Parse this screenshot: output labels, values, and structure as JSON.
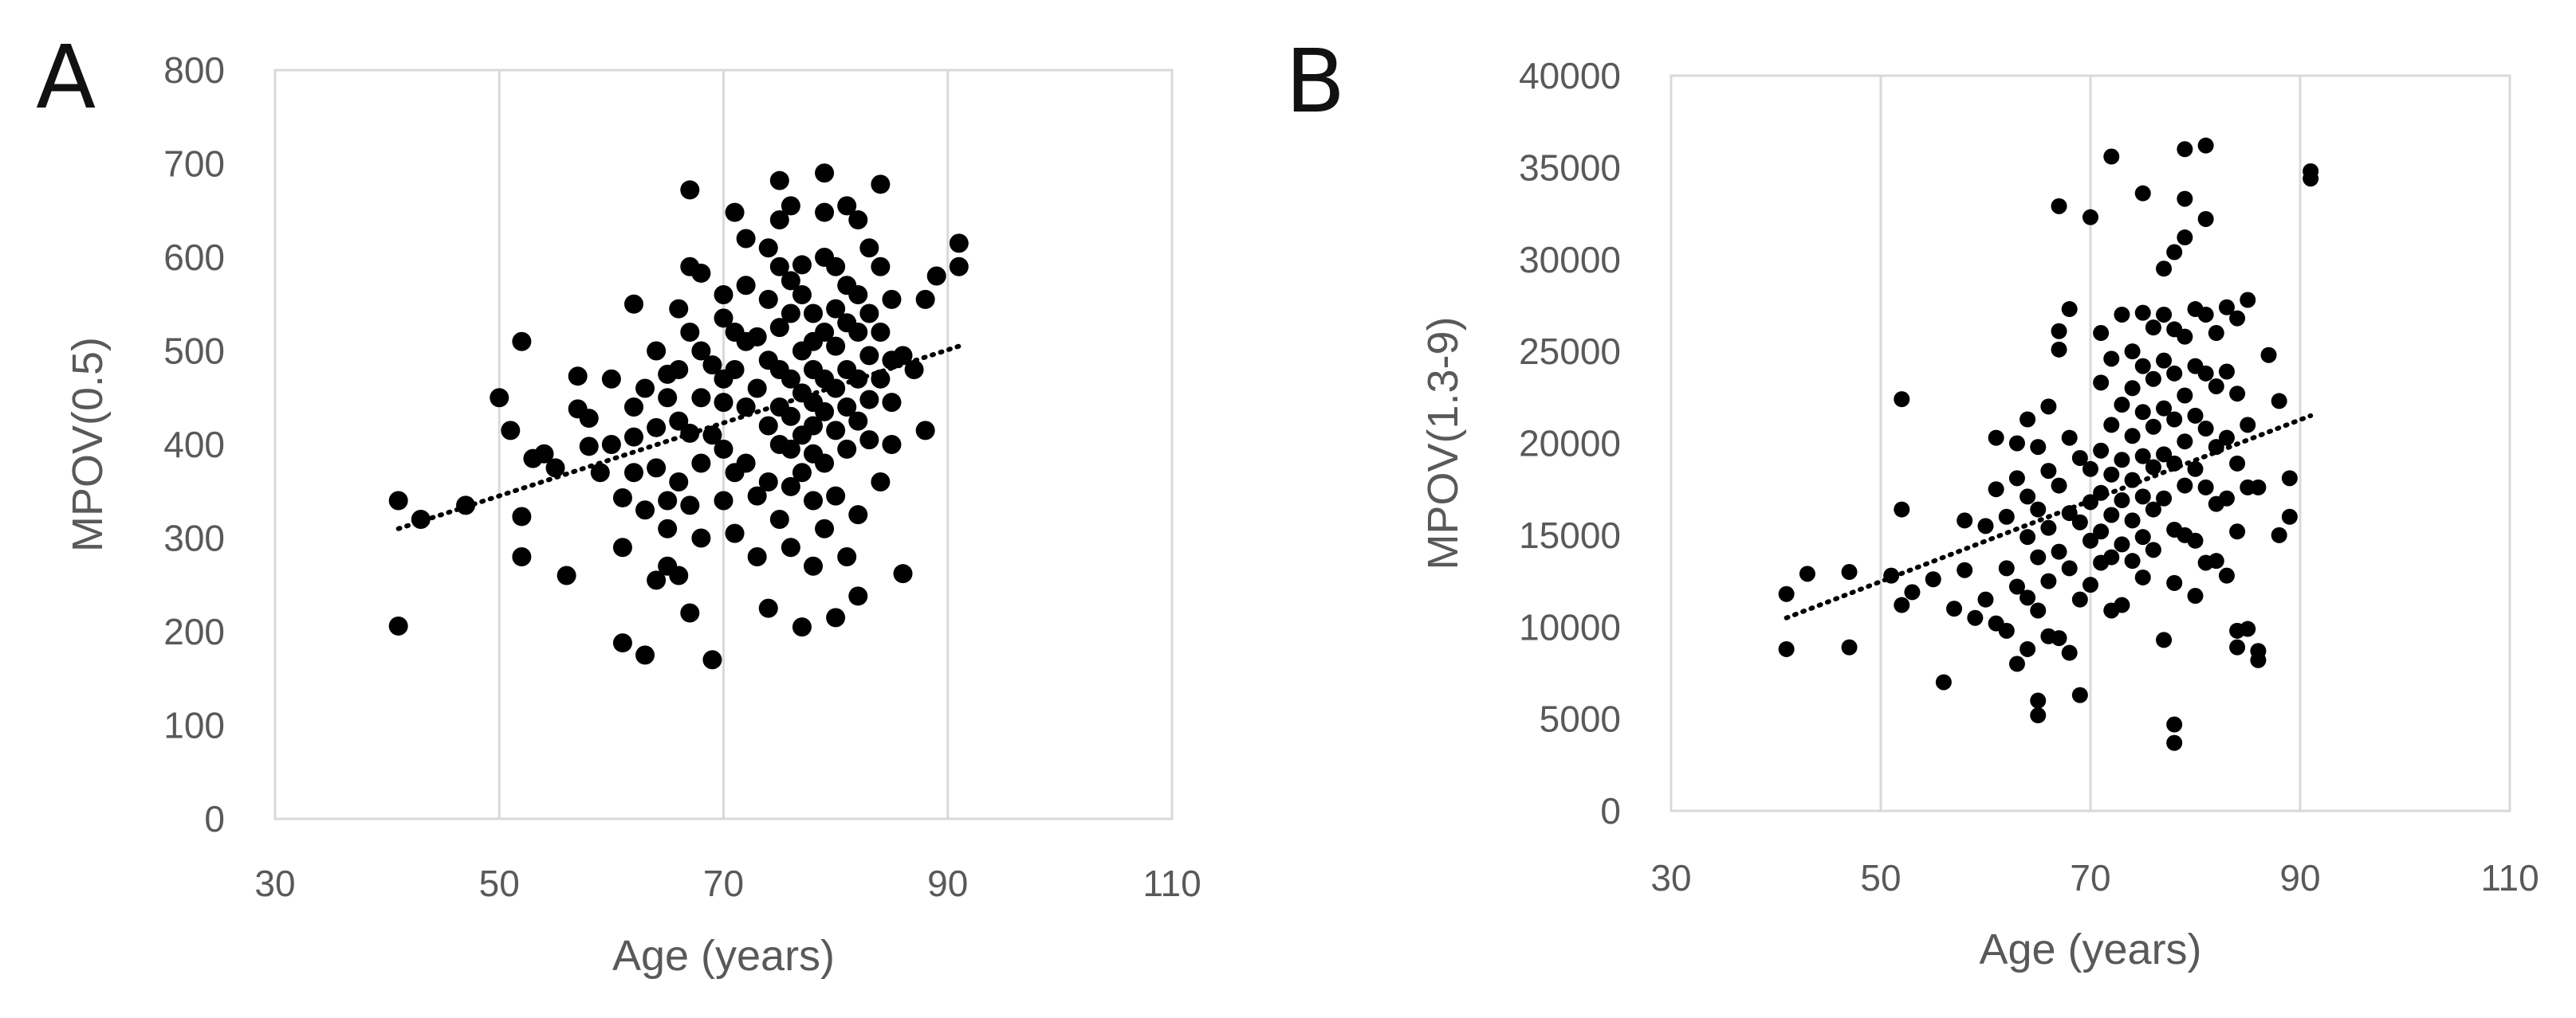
{
  "chart_data": [
    {
      "panel": "A",
      "type": "scatter",
      "xlabel": "Age (years)",
      "ylabel": "MPOV(0.5)",
      "xlim": [
        30,
        110
      ],
      "ylim": [
        0,
        800
      ],
      "xticks": [
        30,
        50,
        70,
        90,
        110
      ],
      "yticks": [
        0,
        100,
        200,
        300,
        400,
        500,
        600,
        700,
        800
      ],
      "grid": "vertical",
      "trendline": {
        "style": "dotted linear",
        "x": [
          41,
          91
        ],
        "y": [
          310,
          505
        ]
      },
      "marker_color": "#000000",
      "points": [
        [
          41,
          340
        ],
        [
          41,
          206
        ],
        [
          43,
          320
        ],
        [
          47,
          335
        ],
        [
          50,
          450
        ],
        [
          51,
          415
        ],
        [
          52,
          510
        ],
        [
          52,
          323
        ],
        [
          52,
          280
        ],
        [
          53,
          385
        ],
        [
          54,
          390
        ],
        [
          55,
          375
        ],
        [
          56,
          260
        ],
        [
          57,
          438
        ],
        [
          57,
          473
        ],
        [
          58,
          428
        ],
        [
          58,
          398
        ],
        [
          59,
          370
        ],
        [
          60,
          470
        ],
        [
          60,
          400
        ],
        [
          61,
          343
        ],
        [
          61,
          290
        ],
        [
          61,
          188
        ],
        [
          62,
          550
        ],
        [
          62,
          440
        ],
        [
          62,
          408
        ],
        [
          62,
          370
        ],
        [
          63,
          330
        ],
        [
          63,
          460
        ],
        [
          63,
          175
        ],
        [
          64,
          500
        ],
        [
          64,
          375
        ],
        [
          64,
          418
        ],
        [
          64,
          255
        ],
        [
          65,
          475
        ],
        [
          65,
          340
        ],
        [
          65,
          310
        ],
        [
          65,
          450
        ],
        [
          65,
          270
        ],
        [
          66,
          545
        ],
        [
          66,
          480
        ],
        [
          66,
          360
        ],
        [
          66,
          425
        ],
        [
          66,
          260
        ],
        [
          67,
          672
        ],
        [
          67,
          590
        ],
        [
          67,
          520
        ],
        [
          67,
          412
        ],
        [
          67,
          335
        ],
        [
          67,
          220
        ],
        [
          68,
          583
        ],
        [
          68,
          500
        ],
        [
          68,
          450
        ],
        [
          68,
          380
        ],
        [
          68,
          300
        ],
        [
          69,
          170
        ],
        [
          69,
          485
        ],
        [
          69,
          410
        ],
        [
          70,
          560
        ],
        [
          70,
          535
        ],
        [
          70,
          470
        ],
        [
          70,
          445
        ],
        [
          70,
          395
        ],
        [
          70,
          340
        ],
        [
          71,
          648
        ],
        [
          71,
          520
        ],
        [
          71,
          480
        ],
        [
          71,
          370
        ],
        [
          71,
          305
        ],
        [
          72,
          620
        ],
        [
          72,
          570
        ],
        [
          72,
          510
        ],
        [
          72,
          440
        ],
        [
          72,
          380
        ],
        [
          73,
          515
        ],
        [
          73,
          460
        ],
        [
          73,
          280
        ],
        [
          73,
          345
        ],
        [
          74,
          610
        ],
        [
          74,
          555
        ],
        [
          74,
          490
        ],
        [
          74,
          420
        ],
        [
          74,
          360
        ],
        [
          74,
          225
        ],
        [
          75,
          682
        ],
        [
          75,
          640
        ],
        [
          75,
          590
        ],
        [
          75,
          525
        ],
        [
          75,
          480
        ],
        [
          75,
          440
        ],
        [
          75,
          400
        ],
        [
          75,
          320
        ],
        [
          76,
          655
        ],
        [
          76,
          575
        ],
        [
          76,
          540
        ],
        [
          76,
          470
        ],
        [
          76,
          430
        ],
        [
          76,
          395
        ],
        [
          76,
          355
        ],
        [
          76,
          290
        ],
        [
          77,
          592
        ],
        [
          77,
          560
        ],
        [
          77,
          500
        ],
        [
          77,
          455
        ],
        [
          77,
          410
        ],
        [
          77,
          370
        ],
        [
          77,
          205
        ],
        [
          78,
          540
        ],
        [
          78,
          510
        ],
        [
          78,
          480
        ],
        [
          78,
          445
        ],
        [
          78,
          420
        ],
        [
          78,
          390
        ],
        [
          78,
          340
        ],
        [
          78,
          270
        ],
        [
          79,
          690
        ],
        [
          79,
          648
        ],
        [
          79,
          600
        ],
        [
          79,
          520
        ],
        [
          79,
          470
        ],
        [
          79,
          435
        ],
        [
          79,
          380
        ],
        [
          79,
          310
        ],
        [
          80,
          590
        ],
        [
          80,
          545
        ],
        [
          80,
          505
        ],
        [
          80,
          460
        ],
        [
          80,
          415
        ],
        [
          80,
          345
        ],
        [
          80,
          215
        ],
        [
          81,
          655
        ],
        [
          81,
          570
        ],
        [
          81,
          530
        ],
        [
          81,
          480
        ],
        [
          81,
          440
        ],
        [
          81,
          395
        ],
        [
          81,
          280
        ],
        [
          82,
          640
        ],
        [
          82,
          560
        ],
        [
          82,
          520
        ],
        [
          82,
          470
        ],
        [
          82,
          425
        ],
        [
          82,
          325
        ],
        [
          82,
          238
        ],
        [
          83,
          610
        ],
        [
          83,
          540
        ],
        [
          83,
          495
        ],
        [
          83,
          448
        ],
        [
          83,
          405
        ],
        [
          84,
          678
        ],
        [
          84,
          590
        ],
        [
          84,
          520
        ],
        [
          84,
          470
        ],
        [
          84,
          360
        ],
        [
          85,
          555
        ],
        [
          85,
          490
        ],
        [
          85,
          445
        ],
        [
          85,
          400
        ],
        [
          86,
          262
        ],
        [
          86,
          495
        ],
        [
          87,
          480
        ],
        [
          88,
          555
        ],
        [
          88,
          415
        ],
        [
          89,
          580
        ],
        [
          91,
          615
        ],
        [
          91,
          590
        ]
      ]
    },
    {
      "panel": "B",
      "type": "scatter",
      "xlabel": "Age (years)",
      "ylabel": "MPOV(1.3-9)",
      "xlim": [
        30,
        110
      ],
      "ylim": [
        0,
        40000
      ],
      "xticks": [
        30,
        50,
        70,
        90,
        110
      ],
      "yticks": [
        0,
        5000,
        10000,
        15000,
        20000,
        25000,
        30000,
        35000,
        40000
      ],
      "grid": "vertical",
      "trendline": {
        "style": "dotted linear",
        "x": [
          41,
          91
        ],
        "y": [
          10500,
          21500
        ]
      },
      "marker_color": "#000000",
      "points": [
        [
          41,
          11800
        ],
        [
          41,
          8800
        ],
        [
          43,
          12900
        ],
        [
          47,
          13000
        ],
        [
          47,
          8900
        ],
        [
          51,
          12800
        ],
        [
          52,
          22400
        ],
        [
          52,
          16400
        ],
        [
          52,
          11200
        ],
        [
          53,
          11900
        ],
        [
          55,
          12600
        ],
        [
          56,
          7000
        ],
        [
          57,
          11000
        ],
        [
          58,
          15800
        ],
        [
          58,
          13100
        ],
        [
          59,
          10500
        ],
        [
          60,
          15500
        ],
        [
          60,
          11500
        ],
        [
          61,
          20300
        ],
        [
          61,
          17500
        ],
        [
          61,
          10200
        ],
        [
          62,
          16000
        ],
        [
          62,
          13200
        ],
        [
          62,
          9800
        ],
        [
          63,
          20000
        ],
        [
          63,
          18100
        ],
        [
          63,
          12200
        ],
        [
          63,
          8000
        ],
        [
          64,
          21300
        ],
        [
          64,
          17100
        ],
        [
          64,
          14900
        ],
        [
          64,
          11600
        ],
        [
          64,
          8800
        ],
        [
          65,
          19800
        ],
        [
          65,
          16400
        ],
        [
          65,
          13800
        ],
        [
          65,
          10900
        ],
        [
          65,
          6000
        ],
        [
          65,
          5200
        ],
        [
          66,
          22000
        ],
        [
          66,
          18500
        ],
        [
          66,
          15400
        ],
        [
          66,
          12500
        ],
        [
          66,
          9500
        ],
        [
          67,
          26100
        ],
        [
          67,
          25100
        ],
        [
          67,
          32900
        ],
        [
          67,
          17700
        ],
        [
          67,
          14100
        ],
        [
          67,
          9400
        ],
        [
          68,
          27300
        ],
        [
          68,
          20300
        ],
        [
          68,
          16200
        ],
        [
          68,
          13200
        ],
        [
          68,
          8600
        ],
        [
          69,
          19200
        ],
        [
          69,
          15700
        ],
        [
          69,
          11500
        ],
        [
          69,
          6300
        ],
        [
          70,
          32300
        ],
        [
          70,
          18600
        ],
        [
          70,
          16800
        ],
        [
          70,
          14700
        ],
        [
          70,
          12300
        ],
        [
          71,
          26000
        ],
        [
          71,
          23300
        ],
        [
          71,
          19600
        ],
        [
          71,
          17300
        ],
        [
          71,
          15200
        ],
        [
          71,
          13500
        ],
        [
          72,
          35600
        ],
        [
          72,
          24600
        ],
        [
          72,
          21000
        ],
        [
          72,
          18300
        ],
        [
          72,
          16100
        ],
        [
          72,
          13800
        ],
        [
          72,
          10900
        ],
        [
          73,
          27000
        ],
        [
          73,
          22100
        ],
        [
          73,
          19100
        ],
        [
          73,
          16900
        ],
        [
          73,
          14500
        ],
        [
          73,
          11200
        ],
        [
          74,
          25000
        ],
        [
          74,
          23000
        ],
        [
          74,
          20400
        ],
        [
          74,
          18000
        ],
        [
          74,
          15800
        ],
        [
          74,
          13600
        ],
        [
          75,
          33600
        ],
        [
          75,
          27100
        ],
        [
          75,
          24200
        ],
        [
          75,
          21700
        ],
        [
          75,
          19300
        ],
        [
          75,
          17100
        ],
        [
          75,
          14900
        ],
        [
          75,
          12700
        ],
        [
          76,
          26300
        ],
        [
          76,
          23500
        ],
        [
          76,
          20900
        ],
        [
          76,
          18700
        ],
        [
          76,
          16400
        ],
        [
          76,
          14200
        ],
        [
          77,
          29500
        ],
        [
          77,
          27000
        ],
        [
          77,
          24500
        ],
        [
          77,
          21900
        ],
        [
          77,
          19400
        ],
        [
          77,
          17000
        ],
        [
          77,
          9300
        ],
        [
          78,
          30400
        ],
        [
          78,
          26200
        ],
        [
          78,
          23800
        ],
        [
          78,
          21300
        ],
        [
          78,
          18900
        ],
        [
          78,
          15300
        ],
        [
          78,
          12400
        ],
        [
          78,
          4700
        ],
        [
          78,
          3700
        ],
        [
          79,
          36000
        ],
        [
          79,
          33300
        ],
        [
          79,
          31200
        ],
        [
          79,
          25800
        ],
        [
          79,
          22600
        ],
        [
          79,
          20100
        ],
        [
          79,
          17700
        ],
        [
          79,
          15000
        ],
        [
          80,
          27300
        ],
        [
          80,
          24200
        ],
        [
          80,
          21500
        ],
        [
          80,
          18600
        ],
        [
          80,
          14700
        ],
        [
          80,
          11700
        ],
        [
          81,
          36200
        ],
        [
          81,
          32200
        ],
        [
          81,
          27000
        ],
        [
          81,
          23800
        ],
        [
          81,
          20800
        ],
        [
          81,
          17600
        ],
        [
          81,
          13500
        ],
        [
          82,
          26000
        ],
        [
          82,
          23100
        ],
        [
          82,
          19800
        ],
        [
          82,
          16700
        ],
        [
          82,
          13600
        ],
        [
          83,
          27400
        ],
        [
          83,
          23900
        ],
        [
          83,
          20300
        ],
        [
          83,
          17000
        ],
        [
          83,
          12800
        ],
        [
          84,
          26800
        ],
        [
          84,
          22700
        ],
        [
          84,
          18900
        ],
        [
          84,
          15200
        ],
        [
          84,
          9800
        ],
        [
          84,
          8900
        ],
        [
          85,
          27800
        ],
        [
          85,
          21000
        ],
        [
          85,
          17600
        ],
        [
          85,
          9900
        ],
        [
          86,
          8700
        ],
        [
          86,
          8200
        ],
        [
          86,
          17600
        ],
        [
          87,
          24800
        ],
        [
          88,
          22300
        ],
        [
          88,
          15000
        ],
        [
          89,
          18100
        ],
        [
          89,
          16000
        ],
        [
          91,
          34800
        ],
        [
          91,
          34400
        ]
      ]
    }
  ]
}
